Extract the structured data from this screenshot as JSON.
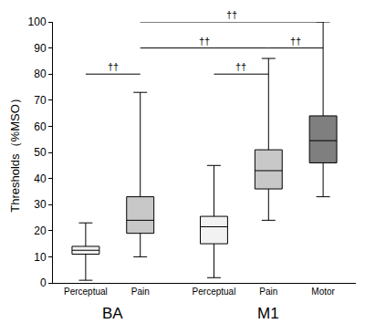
{
  "chart_data": {
    "type": "box",
    "y_label": "Thresholds（%MSO）",
    "ylim": [
      0,
      100
    ],
    "yticks": [
      0,
      10,
      20,
      30,
      40,
      50,
      60,
      70,
      80,
      90,
      100
    ],
    "grid": false,
    "boxes": [
      {
        "group": "BA",
        "category": "Perceptual",
        "min": 1,
        "q1": 11,
        "median": 12.5,
        "q3": 14,
        "max": 23,
        "color": "#f2f2f2"
      },
      {
        "group": "BA",
        "category": "Pain",
        "min": 10,
        "q1": 19,
        "median": 24,
        "q3": 33,
        "max": 73,
        "color": "#c8c8c8"
      },
      {
        "group": "M1",
        "category": "Perceptual",
        "min": 2,
        "q1": 15,
        "median": 21.5,
        "q3": 25.5,
        "max": 45,
        "color": "#f2f2f2"
      },
      {
        "group": "M1",
        "category": "Pain",
        "min": 24,
        "q1": 36,
        "median": 43,
        "q3": 51,
        "max": 86,
        "color": "#c8c8c8"
      },
      {
        "group": "M1",
        "category": "Motor",
        "min": 33,
        "q1": 46,
        "median": 54.5,
        "q3": 64,
        "max": 100,
        "color": "#7f7f7f"
      }
    ],
    "comparisons": [
      {
        "from": [
          "BA",
          "Perceptual"
        ],
        "to": [
          "BA",
          "Pain"
        ],
        "label": "††"
      },
      {
        "from": [
          "M1",
          "Perceptual"
        ],
        "to": [
          "M1",
          "Pain"
        ],
        "label": "††"
      },
      {
        "from": [
          "M1",
          "Pain"
        ],
        "to": [
          "M1",
          "Motor"
        ],
        "label": "††"
      },
      {
        "from": [
          "BA",
          "Pain"
        ],
        "to": [
          "M1",
          "Pain"
        ],
        "label": "††"
      },
      {
        "from": [
          "BA",
          "Pain"
        ],
        "to": [
          "M1",
          "Motor"
        ],
        "label": "††"
      }
    ]
  }
}
